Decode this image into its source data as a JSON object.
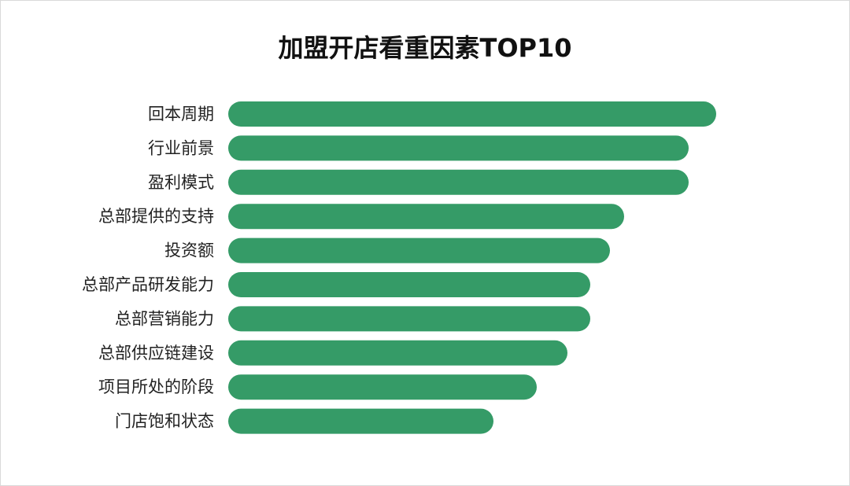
{
  "chart_data": {
    "type": "bar",
    "orientation": "horizontal",
    "title": "加盟开店看重因素TOP10",
    "categories": [
      "回本周期",
      "行业前景",
      "盈利模式",
      "总部提供的支持",
      "投资额",
      "总部产品研发能力",
      "总部营销能力",
      "总部供应链建设",
      "项目所处的阶段",
      "门店饱和状态"
    ],
    "values": [
      620,
      585,
      585,
      503,
      485,
      460,
      460,
      431,
      392,
      337
    ],
    "xlabel": "",
    "ylabel": "",
    "xlim": [
      0,
      620
    ],
    "grid": false,
    "legend": "none",
    "bar_color": "#359b67"
  }
}
